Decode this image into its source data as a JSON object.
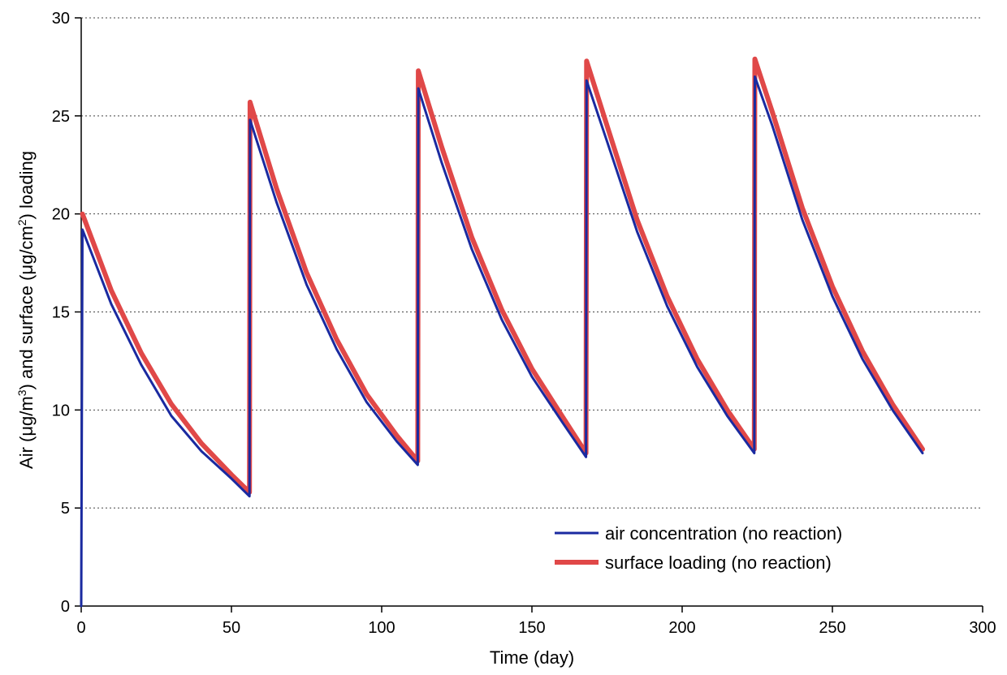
{
  "chart_data": {
    "type": "line",
    "xlabel": "Time (day)",
    "ylabel": {
      "prefix": "Air (",
      "mu1": "μ",
      "unit1": "g/m",
      "sup1": "3",
      "mid": ") and surface (",
      "mu2": "μ",
      "unit2": "g/cm",
      "sup2": "2",
      "suffix": ") loading"
    },
    "xlim": [
      0,
      300
    ],
    "ylim": [
      0,
      30
    ],
    "xticks": [
      0,
      50,
      100,
      150,
      200,
      250,
      300
    ],
    "yticks": [
      0,
      5,
      10,
      15,
      20,
      25,
      30
    ],
    "grid": "horizontal dotted",
    "legend": {
      "position": "bottom-right",
      "entries": [
        "air concentration (no reaction)",
        "surface loading (no reaction)"
      ]
    },
    "series": [
      {
        "name": "air concentration (no reaction)",
        "color": "#1a2aa0",
        "points": [
          [
            0,
            0
          ],
          [
            0.4,
            19.2
          ],
          [
            10,
            15.4
          ],
          [
            20,
            12.3
          ],
          [
            30,
            9.7
          ],
          [
            40,
            7.9
          ],
          [
            50,
            6.5
          ],
          [
            56,
            5.6
          ],
          [
            56.2,
            24.8
          ],
          [
            65,
            20.6
          ],
          [
            75,
            16.4
          ],
          [
            85,
            13.1
          ],
          [
            95,
            10.4
          ],
          [
            105,
            8.4
          ],
          [
            112,
            7.2
          ],
          [
            112.2,
            26.4
          ],
          [
            120,
            22.6
          ],
          [
            130,
            18.2
          ],
          [
            140,
            14.6
          ],
          [
            150,
            11.7
          ],
          [
            160,
            9.4
          ],
          [
            168,
            7.6
          ],
          [
            168.2,
            26.8
          ],
          [
            175,
            23.7
          ],
          [
            185,
            19.1
          ],
          [
            195,
            15.3
          ],
          [
            205,
            12.2
          ],
          [
            215,
            9.7
          ],
          [
            224,
            7.8
          ],
          [
            224.2,
            27.0
          ],
          [
            230,
            24.5
          ],
          [
            240,
            19.7
          ],
          [
            250,
            15.8
          ],
          [
            260,
            12.6
          ],
          [
            270,
            10.0
          ],
          [
            280,
            7.8
          ]
        ]
      },
      {
        "name": "surface loading (no reaction)",
        "color": "#e04848",
        "points": [
          [
            0.4,
            20.0
          ],
          [
            10,
            16.1
          ],
          [
            20,
            12.9
          ],
          [
            30,
            10.3
          ],
          [
            40,
            8.3
          ],
          [
            50,
            6.7
          ],
          [
            56,
            5.8
          ],
          [
            56.2,
            25.7
          ],
          [
            65,
            21.3
          ],
          [
            75,
            17.0
          ],
          [
            85,
            13.6
          ],
          [
            95,
            10.8
          ],
          [
            105,
            8.7
          ],
          [
            112,
            7.4
          ],
          [
            112.2,
            27.3
          ],
          [
            120,
            23.4
          ],
          [
            130,
            18.8
          ],
          [
            140,
            15.1
          ],
          [
            150,
            12.1
          ],
          [
            160,
            9.7
          ],
          [
            168,
            7.8
          ],
          [
            168.2,
            27.8
          ],
          [
            175,
            24.5
          ],
          [
            185,
            19.7
          ],
          [
            195,
            15.8
          ],
          [
            205,
            12.6
          ],
          [
            215,
            10.0
          ],
          [
            224,
            8.0
          ],
          [
            224.2,
            27.9
          ],
          [
            230,
            25.2
          ],
          [
            240,
            20.3
          ],
          [
            250,
            16.3
          ],
          [
            260,
            13.0
          ],
          [
            270,
            10.3
          ],
          [
            280,
            8.0
          ]
        ]
      }
    ]
  }
}
